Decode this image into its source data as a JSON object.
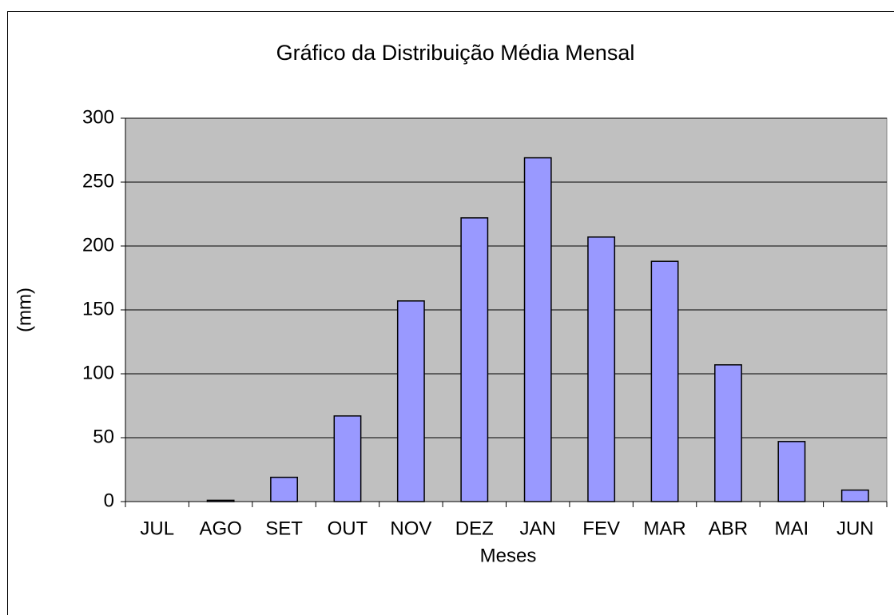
{
  "chart_data": {
    "type": "bar",
    "title": "Gráfico da Distribuição Média Mensal",
    "x_label": "Meses",
    "y_label": "(mm)",
    "categories": [
      "JUL",
      "AGO",
      "SET",
      "OUT",
      "NOV",
      "DEZ",
      "JAN",
      "FEV",
      "MAR",
      "ABR",
      "MAI",
      "JUN"
    ],
    "values": [
      0,
      1,
      19,
      67,
      157,
      222,
      269,
      207,
      188,
      107,
      47,
      9
    ],
    "color": "#9999ff",
    "plot_background": "#c0c0c0",
    "ylim": [
      0,
      300
    ],
    "yticks": [
      0,
      50,
      100,
      150,
      200,
      250,
      300
    ],
    "grid": true
  }
}
